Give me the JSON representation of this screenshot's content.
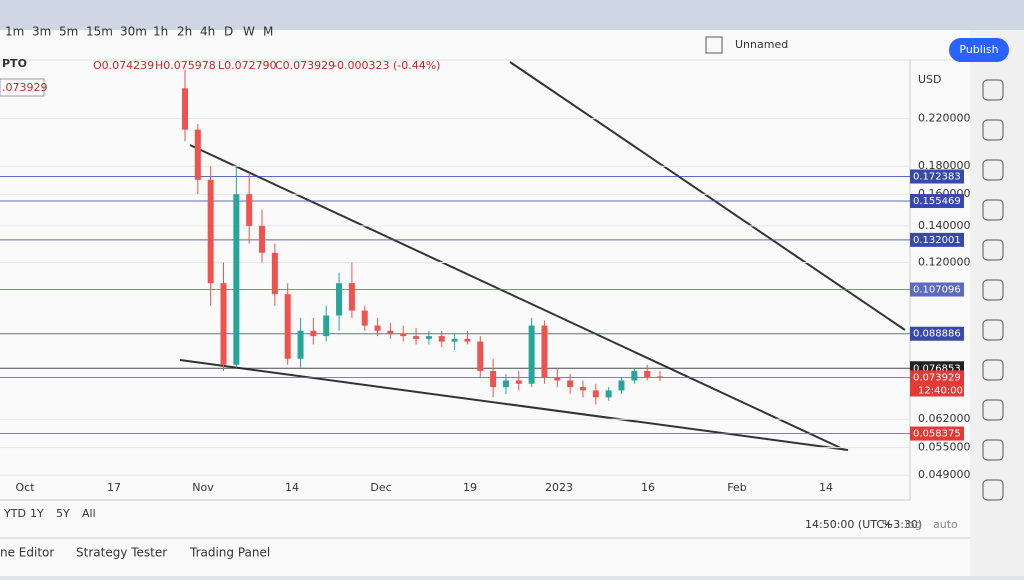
{
  "toolbar": {
    "intervals": [
      "1m",
      "3m",
      "5m",
      "15m",
      "30m",
      "1h",
      "2h",
      "4h",
      "D",
      "W",
      "M"
    ],
    "layout_name": "Unnamed",
    "publish": "Publish"
  },
  "legend": {
    "symbol": "PTO",
    "open": "O0.074239",
    "high": "H0.075978",
    "low": "L0.072790",
    "close": "C0.073929",
    "change": "-0.000323 (-0.44%)",
    "price_tag": ".073929"
  },
  "chart_data": {
    "type": "candlestick",
    "currency": "USD",
    "log_scale": true,
    "up_color": "#26a69a",
    "down_color": "#ef5350",
    "ylim": [
      0.048,
      0.27
    ],
    "yticks": [
      {
        "value": 0.22,
        "label": "0.220000"
      },
      {
        "value": 0.18,
        "label": "0.180000"
      },
      {
        "value": 0.16,
        "label": "0.160000"
      },
      {
        "value": 0.14,
        "label": "0.140000"
      },
      {
        "value": 0.12,
        "label": "0.120000"
      },
      {
        "value": 0.062,
        "label": "0.062000"
      },
      {
        "value": 0.055,
        "label": "0.055000"
      },
      {
        "value": 0.049,
        "label": "0.049000"
      }
    ],
    "x_labels": [
      "Oct",
      "17",
      "Nov",
      "14",
      "Dec",
      "19",
      "2023",
      "16",
      "Feb",
      "14"
    ],
    "open": [
      0.25,
      0.21,
      0.17,
      0.11,
      0.078,
      0.16,
      0.14,
      0.125,
      0.105,
      0.08,
      0.09,
      0.088,
      0.096,
      0.11,
      0.098,
      0.092,
      0.09,
      0.089,
      0.088,
      0.087,
      0.088,
      0.086,
      0.087,
      0.086,
      0.076,
      0.071,
      0.073,
      0.072,
      0.092,
      0.074,
      0.073,
      0.071,
      0.07,
      0.068,
      0.07,
      0.073,
      0.076,
      0.074239
    ],
    "high": [
      0.27,
      0.215,
      0.18,
      0.12,
      0.18,
      0.175,
      0.15,
      0.13,
      0.11,
      0.095,
      0.095,
      0.1,
      0.115,
      0.12,
      0.1,
      0.095,
      0.093,
      0.092,
      0.091,
      0.09,
      0.09,
      0.089,
      0.09,
      0.088,
      0.08,
      0.075,
      0.076,
      0.095,
      0.094,
      0.077,
      0.075,
      0.073,
      0.072,
      0.071,
      0.074,
      0.077,
      0.078,
      0.075978
    ],
    "low": [
      0.2,
      0.16,
      0.1,
      0.076,
      0.077,
      0.13,
      0.12,
      0.1,
      0.078,
      0.077,
      0.085,
      0.086,
      0.09,
      0.095,
      0.09,
      0.088,
      0.087,
      0.086,
      0.085,
      0.085,
      0.084,
      0.083,
      0.085,
      0.074,
      0.068,
      0.069,
      0.07,
      0.071,
      0.072,
      0.071,
      0.069,
      0.068,
      0.066,
      0.067,
      0.069,
      0.072,
      0.073,
      0.07279
    ],
    "close": [
      0.21,
      0.17,
      0.11,
      0.078,
      0.16,
      0.14,
      0.125,
      0.105,
      0.08,
      0.09,
      0.088,
      0.096,
      0.11,
      0.098,
      0.092,
      0.09,
      0.089,
      0.088,
      0.087,
      0.088,
      0.086,
      0.087,
      0.086,
      0.076,
      0.071,
      0.073,
      0.072,
      0.092,
      0.074,
      0.073,
      0.071,
      0.07,
      0.068,
      0.07,
      0.073,
      0.076,
      0.074,
      0.073929
    ],
    "price_lines": {
      "values": [
        0.172383,
        0.155469,
        0.132001,
        0.107096,
        0.088886,
        0.076853,
        0.073929,
        0.058375
      ],
      "colors": [
        "#3949ab",
        "#3949ab",
        "#3949ab",
        "#5c6bc0",
        "#3949ab",
        "#222222",
        "#e53935",
        "#e53935"
      ]
    },
    "countdown": "12:40:00"
  },
  "bottom_bar": {
    "ranges": [
      "YTD",
      "1Y",
      "5Y",
      "All"
    ],
    "time": "14:50:00 (UTC+3:30)",
    "percent": "%",
    "log": "log",
    "auto": "auto"
  },
  "panel_tabs": [
    "ne Editor",
    "Strategy Tester",
    "Trading Panel"
  ]
}
